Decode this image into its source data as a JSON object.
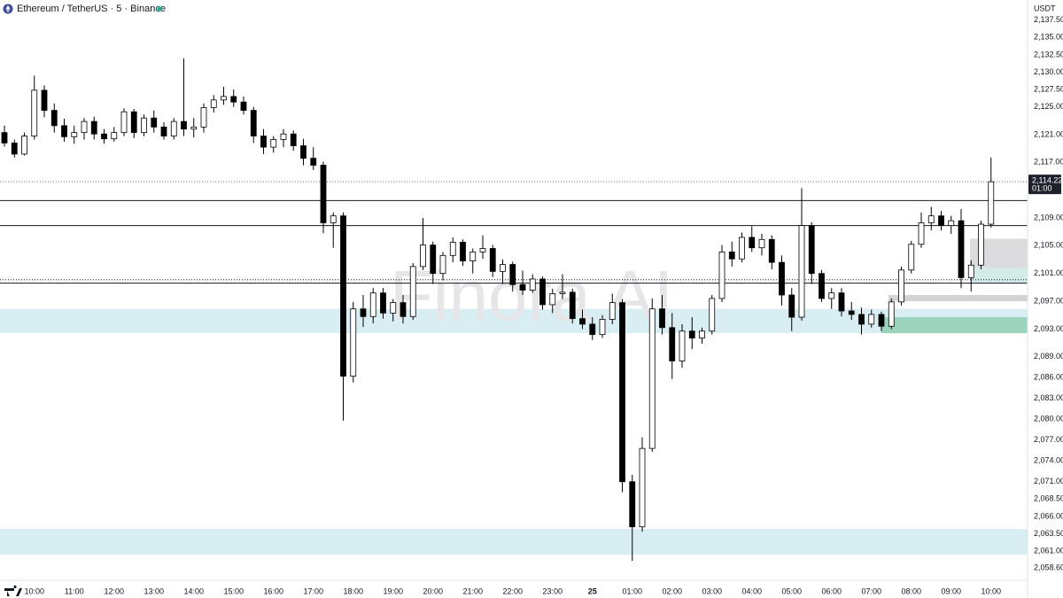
{
  "chart_data": {
    "type": "candlestick",
    "title": "Ethereum / TetherUS · 5 · Binance",
    "currency": "USDT",
    "watermark": "Finora AI",
    "categories": [
      null,
      null,
      null,
      "10:00",
      null,
      null,
      null,
      "11:00",
      null,
      null,
      null,
      "12:00",
      null,
      null,
      null,
      "13:00",
      null,
      null,
      null,
      "14:00",
      null,
      null,
      null,
      "15:00",
      null,
      null,
      null,
      "16:00",
      null,
      null,
      null,
      "17:00",
      null,
      null,
      null,
      "18:00",
      null,
      null,
      null,
      "19:00",
      null,
      null,
      null,
      "20:00",
      null,
      null,
      null,
      "21:00",
      null,
      null,
      null,
      "22:00",
      null,
      null,
      null,
      "23:00",
      null,
      null,
      null,
      "25",
      null,
      null,
      null,
      "01:00",
      null,
      null,
      null,
      "02:00",
      null,
      null,
      null,
      "03:00",
      null,
      null,
      null,
      "04:00",
      null,
      null,
      null,
      "05:00",
      null,
      null,
      null,
      "06:00",
      null,
      null,
      null,
      "07:00",
      null,
      null,
      null,
      "08:00",
      null,
      null,
      null,
      "09:00",
      null,
      null,
      null,
      "10:00"
    ],
    "open": [
      2121.3,
      2119.8,
      2118.2,
      2120.8,
      2127.4,
      2124.5,
      2122.3,
      2120.7,
      2121.3,
      2122.9,
      2121.1,
      2120.4,
      2121.3,
      2124.3,
      2121.3,
      2123.4,
      2122.1,
      2120.8,
      2122.9,
      2121.8,
      2122.1,
      2124.9,
      2126.0,
      2126.5,
      2125.7,
      2124.5,
      2120.8,
      2119.2,
      2120.3,
      2121.1,
      2119.4,
      2117.6,
      2116.6,
      2108.3,
      2109.3,
      2086.2,
      2095.9,
      2094.8,
      2098.2,
      2095.3,
      2096.8,
      2094.8,
      2102.0,
      2105.1,
      2101.0,
      2103.6,
      2105.5,
      2102.8,
      2104.1,
      2104.6,
      2101.3,
      2102.3,
      2099.4,
      2098.6,
      2100.2,
      2096.5,
      2098.1,
      2098.3,
      2094.5,
      2093.7,
      2092.2,
      2094.4,
      2096.8,
      2071.0,
      2064.5,
      2075.8,
      2095.9,
      2093.2,
      2088.4,
      2092.7,
      2091.7,
      2092.7,
      2097.4,
      2104.1,
      2103.1,
      2106.2,
      2104.7,
      2105.9,
      2102.6,
      2097.9,
      2094.7,
      2107.9,
      2101.0,
      2097.4,
      2098.2,
      2095.6,
      2095.1,
      2093.7,
      2095.1,
      2093.4,
      2096.9,
      2101.5,
      2105.2,
      2108.3,
      2109.3,
      2107.9,
      2108.6,
      2100.4,
      2102.2,
      2108.1
    ],
    "high": [
      2122.3,
      2120.3,
      2121.3,
      2129.5,
      2128.1,
      2125.5,
      2123.3,
      2122.3,
      2123.4,
      2123.6,
      2121.8,
      2122.1,
      2124.8,
      2124.7,
      2123.9,
      2124.5,
      2122.8,
      2123.4,
      2132.0,
      2123.4,
      2125.5,
      2126.7,
      2127.9,
      2127.5,
      2126.5,
      2125.0,
      2121.8,
      2120.8,
      2121.8,
      2121.6,
      2120.4,
      2119.2,
      2117.1,
      2109.8,
      2109.8,
      2096.9,
      2097.9,
      2098.9,
      2098.9,
      2097.3,
      2097.9,
      2102.5,
      2109.0,
      2105.6,
      2104.1,
      2106.2,
      2105.9,
      2104.6,
      2106.5,
      2105.1,
      2103.0,
      2102.7,
      2101.4,
      2100.9,
      2100.6,
      2098.8,
      2100.9,
      2098.8,
      2095.8,
      2094.7,
      2095.0,
      2098.1,
      2097.3,
      2072.0,
      2077.4,
      2097.4,
      2097.9,
      2095.3,
      2093.7,
      2094.7,
      2093.2,
      2097.9,
      2105.1,
      2105.6,
      2106.9,
      2107.8,
      2106.7,
      2106.5,
      2103.6,
      2098.9,
      2113.3,
      2108.4,
      2101.5,
      2098.9,
      2098.9,
      2096.9,
      2096.1,
      2095.8,
      2095.5,
      2097.4,
      2102.0,
      2105.7,
      2109.8,
      2110.6,
      2110.0,
      2109.3,
      2110.3,
      2102.9,
      2108.6,
      2117.7
    ],
    "low": [
      2119.3,
      2117.7,
      2118.0,
      2120.3,
      2123.5,
      2121.3,
      2120.0,
      2119.7,
      2120.3,
      2120.3,
      2119.7,
      2120.0,
      2120.8,
      2120.5,
      2120.8,
      2121.3,
      2120.3,
      2120.3,
      2120.8,
      2120.6,
      2121.3,
      2124.2,
      2125.3,
      2125.0,
      2123.9,
      2119.8,
      2118.2,
      2118.4,
      2119.2,
      2118.7,
      2116.6,
      2115.9,
      2106.8,
      2104.7,
      2079.8,
      2085.3,
      2093.3,
      2093.8,
      2094.5,
      2094.1,
      2093.8,
      2094.3,
      2101.5,
      2099.5,
      2100.0,
      2102.6,
      2102.1,
      2101.0,
      2103.1,
      2100.5,
      2099.5,
      2098.4,
      2097.9,
      2098.2,
      2095.8,
      2095.3,
      2097.3,
      2093.8,
      2093.0,
      2091.4,
      2091.7,
      2093.7,
      2069.5,
      2059.6,
      2063.8,
      2075.3,
      2092.2,
      2085.8,
      2087.4,
      2090.1,
      2090.9,
      2092.2,
      2096.9,
      2102.0,
      2102.6,
      2104.1,
      2103.6,
      2101.6,
      2096.4,
      2092.7,
      2094.2,
      2099.5,
      2096.9,
      2095.9,
      2094.8,
      2094.3,
      2092.2,
      2093.2,
      2092.7,
      2093.0,
      2096.4,
      2101.0,
      2104.7,
      2107.2,
      2107.2,
      2106.7,
      2098.9,
      2098.4,
      2101.6,
      2107.6
    ],
    "close": [
      2119.8,
      2118.2,
      2120.8,
      2127.4,
      2124.5,
      2122.3,
      2120.7,
      2121.3,
      2122.9,
      2121.1,
      2120.4,
      2121.3,
      2124.3,
      2121.3,
      2123.4,
      2122.1,
      2120.8,
      2122.9,
      2121.8,
      2122.1,
      2124.9,
      2126.0,
      2126.5,
      2125.7,
      2124.5,
      2120.8,
      2119.2,
      2120.3,
      2121.1,
      2119.4,
      2117.6,
      2116.6,
      2108.3,
      2109.3,
      2086.2,
      2095.9,
      2094.8,
      2098.2,
      2095.3,
      2096.8,
      2094.8,
      2102.0,
      2105.1,
      2101.0,
      2103.6,
      2105.5,
      2102.8,
      2104.1,
      2104.6,
      2101.3,
      2102.3,
      2099.4,
      2098.6,
      2100.2,
      2096.5,
      2098.1,
      2098.3,
      2094.5,
      2093.7,
      2092.2,
      2094.4,
      2096.8,
      2071.0,
      2064.5,
      2075.8,
      2095.9,
      2093.2,
      2088.4,
      2092.7,
      2091.7,
      2092.7,
      2097.4,
      2104.1,
      2103.1,
      2106.2,
      2104.7,
      2105.9,
      2102.6,
      2097.9,
      2094.7,
      2107.9,
      2101.0,
      2097.4,
      2098.2,
      2095.6,
      2095.1,
      2093.7,
      2095.1,
      2093.4,
      2096.9,
      2101.5,
      2105.2,
      2108.3,
      2109.3,
      2107.9,
      2108.6,
      2100.4,
      2102.2,
      2108.1,
      2114.22
    ],
    "up_color": "#ffffff",
    "down_color": "#000000",
    "last_price": {
      "value": 2114.22,
      "label": "2,114.22"
    },
    "countdown": "01:00",
    "levels": [
      2111.5,
      2107.9,
      2099.6
    ],
    "dotted_levels": [
      2100.1
    ],
    "zones": [
      {
        "high": 2095.9,
        "low": 2092.4,
        "color": "#d9eef3"
      },
      {
        "high": 2064.2,
        "low": 2060.5,
        "color": "#d9eef3"
      },
      {
        "high": 2106.0,
        "low": 2101.8,
        "color": "#dcdcde"
      },
      {
        "high": 2101.8,
        "low": 2099.6,
        "color": "#d4ece8"
      },
      {
        "high": 2097.9,
        "low": 2097.0,
        "color": "#d3d3d6"
      },
      {
        "high": 2094.7,
        "low": 2092.4,
        "color": "#9bd3bd"
      }
    ],
    "ylim": [
      2056.8,
      2140.4
    ],
    "yticks": [
      {
        "value": 2137.5,
        "label": "2,137.50"
      },
      {
        "value": 2135,
        "label": "2,135.00"
      },
      {
        "value": 2132.5,
        "label": "2,132.50"
      },
      {
        "value": 2130,
        "label": "2,130.00"
      },
      {
        "value": 2127.5,
        "label": "2,127.50"
      },
      {
        "value": 2125,
        "label": "2,125.00"
      },
      {
        "value": 2121,
        "label": "2,121.00"
      },
      {
        "value": 2117,
        "label": "2,117.00"
      },
      {
        "value": 2109,
        "label": "2,109.00"
      },
      {
        "value": 2105,
        "label": "2,105.00"
      },
      {
        "value": 2101,
        "label": "2,101.00"
      },
      {
        "value": 2097,
        "label": "2,097.00"
      },
      {
        "value": 2093,
        "label": "2,093.00"
      },
      {
        "value": 2089,
        "label": "2,089.00"
      },
      {
        "value": 2086,
        "label": "2,086.00"
      },
      {
        "value": 2083,
        "label": "2,083.00"
      },
      {
        "value": 2080,
        "label": "2,080.00"
      },
      {
        "value": 2077,
        "label": "2,077.00"
      },
      {
        "value": 2074,
        "label": "2,074.00"
      },
      {
        "value": 2071,
        "label": "2,071.00"
      },
      {
        "value": 2068.5,
        "label": "2,068.50"
      },
      {
        "value": 2066,
        "label": "2,066.00"
      },
      {
        "value": 2063.5,
        "label": "2,063.50"
      },
      {
        "value": 2061,
        "label": "2,061.00"
      },
      {
        "value": 2058.6,
        "label": "2,058.60"
      }
    ],
    "grid": false
  }
}
